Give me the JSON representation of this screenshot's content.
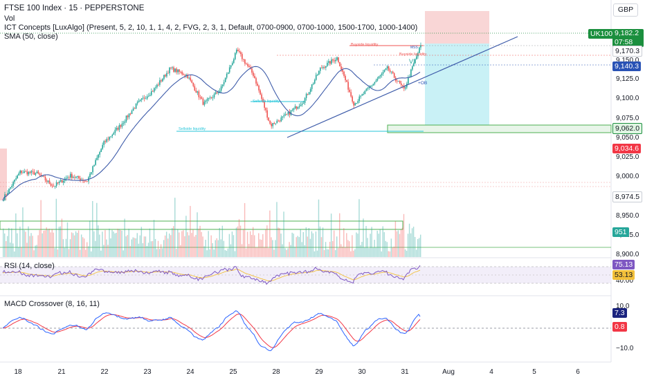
{
  "header": {
    "symbol": "FTSE 100 Index · 15 · PEPPERSTONE",
    "vol": "Vol",
    "ict": "ICT Concepts [LuxAlgo] (Present, 5, 2, 10, 1, 1, 4, 2, FVG, 2, 3, 1, Default, 0700-0900, 0700-1000, 1500-1700, 1000-1400)",
    "sma": "SMA (50, close)",
    "rsi": "RSI (14, close)",
    "macd": "MACD Crossover (8, 16, 11)",
    "currency": "GBP"
  },
  "colors": {
    "bull": "#26a69a",
    "bear": "#ef5350",
    "sma": "#3d5ba9",
    "rsi": "#7e57c2",
    "macd": "#2962ff",
    "signal": "#f23645",
    "green_label": "#1b8f3e",
    "blue_label": "#2952b5",
    "red_label": "#f23645",
    "teal_label": "#26a69a",
    "amber_label": "#f2c03b"
  },
  "price_axis": {
    "ticks": [
      "9,175.0",
      "9,150.0",
      "9,125.0",
      "9,100.0",
      "9,075.0",
      "9,050.0",
      "9,025.0",
      "9,000.0",
      "8,950.0",
      "8,925.0",
      "8,900.0"
    ],
    "labels": {
      "uk100_tag": "UK100",
      "last_price": "9,182.2",
      "countdown": "07:58",
      "level_1": "9,170.3",
      "level_2": "9,140.3",
      "level_3": "9,062.0",
      "level_4": "9,034.6",
      "level_5": "8,974.5",
      "volume": "951"
    }
  },
  "rsi_axis": {
    "ticks": [
      "40.00"
    ],
    "value": "75.13",
    "signal": "53.13"
  },
  "macd_axis": {
    "ticks": [
      "10.0",
      "−10.0"
    ],
    "macd": "7.3",
    "signal": "0.8"
  },
  "annotations": {
    "buyside_1": "Buyside liquidity",
    "buyside_2": "Buyside liquidity",
    "sellside_1": "Sellside liquidity",
    "sellside_2": "Sellside liquidity",
    "mss": "MSS",
    "vi": "VI",
    "ob": "+OB"
  },
  "time_axis": {
    "labels": [
      "18",
      "21",
      "22",
      "23",
      "24",
      "25",
      "28",
      "29",
      "30",
      "31",
      "Aug",
      "4",
      "5",
      "6"
    ]
  },
  "chart_data": {
    "type": "candlestick",
    "symbol": "FTSE 100 Index",
    "interval": "15",
    "x_labels": [
      "18",
      "21",
      "22",
      "23",
      "24",
      "25",
      "28",
      "29",
      "30",
      "31",
      "Aug",
      "4",
      "5",
      "6"
    ],
    "y_unit": "GBP",
    "ylim": [
      8895,
      9230
    ],
    "anchors": [
      {
        "day": "18",
        "price": 8968
      },
      {
        "day": "18",
        "price": 9005
      },
      {
        "day": "21",
        "price": 9003
      },
      {
        "day": "21",
        "price": 8985
      },
      {
        "day": "22",
        "price": 9000
      },
      {
        "day": "22",
        "price": 8992
      },
      {
        "day": "23",
        "price": 9045
      },
      {
        "day": "23",
        "price": 9070
      },
      {
        "day": "24",
        "price": 9100
      },
      {
        "day": "24",
        "price": 9120
      },
      {
        "day": "24",
        "price": 9150
      },
      {
        "day": "25",
        "price": 9140
      },
      {
        "day": "25",
        "price": 9100
      },
      {
        "day": "25",
        "price": 9120
      },
      {
        "day": "28",
        "price": 9175
      },
      {
        "day": "28",
        "price": 9140
      },
      {
        "day": "28",
        "price": 9070
      },
      {
        "day": "29",
        "price": 9085
      },
      {
        "day": "29",
        "price": 9105
      },
      {
        "day": "29",
        "price": 9150
      },
      {
        "day": "30",
        "price": 9165
      },
      {
        "day": "30",
        "price": 9100
      },
      {
        "day": "30",
        "price": 9125
      },
      {
        "day": "31",
        "price": 9150
      },
      {
        "day": "31",
        "price": 9120
      },
      {
        "day": "31",
        "price": 9182.2
      }
    ],
    "series": [
      {
        "name": "SMA (50, close)"
      },
      {
        "name": "Vol",
        "last": 951
      },
      {
        "name": "RSI (14, close)",
        "last": 75.13,
        "signal": 53.13
      },
      {
        "name": "MACD Crossover (8, 16, 11)",
        "macd": 7.3,
        "signal": 0.8
      }
    ],
    "levels": [
      9182.2,
      9170.3,
      9140.3,
      9062.0,
      9034.6,
      8974.5
    ],
    "position": {
      "entry": 9170.3,
      "stop": 9225,
      "target": 9062.0
    }
  }
}
